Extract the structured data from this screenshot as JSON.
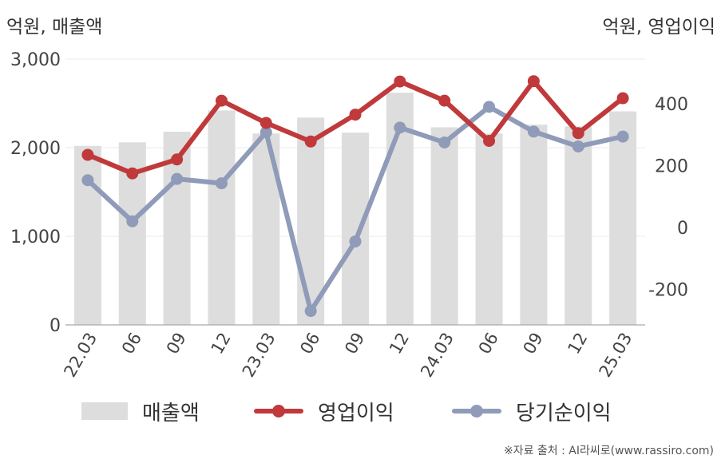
{
  "units": {
    "left": "억원, 매출액",
    "right": "억원, 영업이익"
  },
  "source": "※자료 출처 : AI라씨로(www.rassiro.com)",
  "colors": {
    "revenue": "#dddddd",
    "operating": "#c0393b",
    "net": "#8f9bb8"
  },
  "chart_data": {
    "type": "bar",
    "categories": [
      "22.03",
      "06",
      "09",
      "12",
      "23.03",
      "06",
      "09",
      "12",
      "24.03",
      "06",
      "09",
      "12",
      "25.03"
    ],
    "y_left": {
      "ticks": [
        0,
        1000,
        2000,
        3000
      ],
      "tick_labels": [
        "0",
        "1,000",
        "2,000",
        "3,000"
      ],
      "range": [
        0,
        3000
      ]
    },
    "y_right": {
      "ticks": [
        -200,
        0,
        200,
        400
      ],
      "tick_labels": [
        "-200",
        "0",
        "200",
        "400"
      ],
      "range": [
        -320,
        550
      ]
    },
    "grid": true,
    "legend_position": "bottom",
    "series": [
      {
        "name": "매출액",
        "type": "bar",
        "axis": "left",
        "values": [
          2020,
          2060,
          2180,
          2420,
          2160,
          2340,
          2170,
          2620,
          2230,
          2160,
          2260,
          2240,
          2410
        ]
      },
      {
        "name": "영업이익",
        "type": "line",
        "axis": "right",
        "values": [
          235,
          175,
          220,
          410,
          338,
          278,
          365,
          472,
          410,
          280,
          473,
          305,
          418
        ]
      },
      {
        "name": "당기순이익",
        "type": "line",
        "axis": "right",
        "values": [
          153,
          20,
          157,
          143,
          308,
          -270,
          -45,
          323,
          275,
          390,
          310,
          262,
          294
        ]
      }
    ]
  }
}
